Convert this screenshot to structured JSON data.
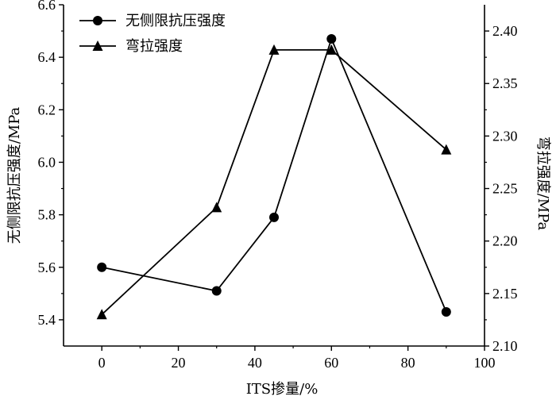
{
  "chart_data": {
    "type": "line",
    "xlabel": "ITS掺量/%",
    "ylabel_left": "无侧限抗压强度/MPa",
    "ylabel_right": "弯拉强度/MPa",
    "xlim": [
      -10,
      100
    ],
    "ylim_left": [
      5.3,
      6.6
    ],
    "ylim_right": [
      2.1,
      2.425
    ],
    "xticks": [
      0,
      20,
      40,
      60,
      80,
      100
    ],
    "yticks_left": [
      5.4,
      5.6,
      5.8,
      6.0,
      6.2,
      6.4,
      6.6
    ],
    "yticks_right": [
      2.1,
      2.15,
      2.2,
      2.25,
      2.3,
      2.35,
      2.4
    ],
    "grid": false,
    "legend_position": "top-left",
    "series": [
      {
        "name": "无侧限抗压强度",
        "axis": "left",
        "marker": "circle",
        "x": [
          0,
          30,
          45,
          60,
          90
        ],
        "values": [
          5.6,
          5.51,
          5.79,
          6.47,
          5.43
        ]
      },
      {
        "name": "弯拉强度",
        "axis": "right",
        "marker": "triangle",
        "x": [
          0,
          30,
          45,
          60,
          90
        ],
        "values": [
          2.13,
          2.232,
          2.382,
          2.382,
          2.287
        ]
      }
    ]
  }
}
